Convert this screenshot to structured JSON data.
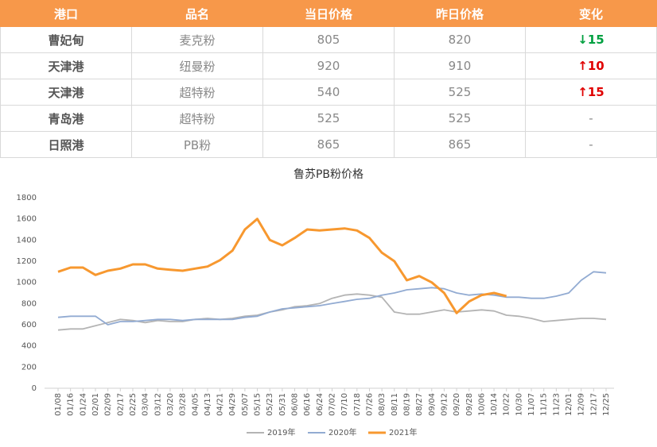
{
  "table": {
    "header": [
      "港口",
      "品名",
      "当日价格",
      "昨日价格",
      "变化"
    ],
    "rows": [
      [
        "曹妃甸",
        "麦克粉",
        "805",
        "820",
        "↓15"
      ],
      [
        "天津港",
        "纽曼粉",
        "920",
        "910",
        "↑10"
      ],
      [
        "天津港",
        "超特粉",
        "540",
        "525",
        "↑15"
      ],
      [
        "青岛港",
        "超特粉",
        "525",
        "525",
        "-"
      ],
      [
        "日照港",
        "PB粉",
        "865",
        "865",
        "-"
      ]
    ]
  },
  "chart_data": {
    "type": "line",
    "title": "鲁苏PB粉价格",
    "categories": [
      "01/08",
      "01/16",
      "01/24",
      "02/01",
      "02/09",
      "02/17",
      "02/25",
      "03/04",
      "03/12",
      "03/20",
      "03/28",
      "04/05",
      "04/13",
      "04/21",
      "04/29",
      "05/07",
      "05/15",
      "05/23",
      "05/31",
      "06/08",
      "06/16",
      "06/24",
      "07/02",
      "07/10",
      "07/18",
      "07/26",
      "08/03",
      "08/11",
      "08/19",
      "08/27",
      "09/04",
      "09/12",
      "09/20",
      "09/28",
      "10/06",
      "10/14",
      "10/22",
      "10/30",
      "11/07",
      "11/15",
      "11/23",
      "12/01",
      "12/09",
      "12/17",
      "12/25"
    ],
    "series": [
      {
        "name": "2019年",
        "color": "#b4b4b4",
        "values": [
          550,
          560,
          560,
          590,
          620,
          650,
          640,
          620,
          640,
          630,
          630,
          650,
          660,
          650,
          660,
          680,
          690,
          720,
          740,
          770,
          780,
          800,
          850,
          880,
          890,
          880,
          860,
          720,
          700,
          700,
          720,
          740,
          720,
          730,
          740,
          730,
          690,
          680,
          660,
          630,
          640,
          650,
          660,
          660,
          650
        ]
      },
      {
        "name": "2020年",
        "color": "#92abd2",
        "values": [
          670,
          680,
          680,
          680,
          600,
          630,
          630,
          640,
          650,
          650,
          640,
          650,
          650,
          650,
          650,
          670,
          680,
          720,
          750,
          760,
          770,
          780,
          800,
          820,
          840,
          850,
          880,
          900,
          930,
          940,
          950,
          940,
          900,
          880,
          890,
          880,
          860,
          860,
          850,
          850,
          870,
          900,
          1020,
          1100,
          1090
        ]
      },
      {
        "name": "2021年",
        "color": "#f7982f",
        "values": [
          1100,
          1140,
          1140,
          1070,
          1110,
          1130,
          1170,
          1170,
          1130,
          1120,
          1110,
          1130,
          1150,
          1210,
          1300,
          1500,
          1600,
          1400,
          1350,
          1420,
          1500,
          1490,
          1500,
          1510,
          1490,
          1420,
          1280,
          1200,
          1020,
          1060,
          1000,
          900,
          710,
          820,
          880,
          900,
          870,
          null,
          null,
          null,
          null,
          null,
          null,
          null,
          null
        ]
      }
    ],
    "ylim": [
      0,
      1800
    ],
    "yticks": [
      0,
      200,
      400,
      600,
      800,
      1000,
      1200,
      1400,
      1600,
      1800
    ],
    "grid": false,
    "legend": "bottom"
  }
}
